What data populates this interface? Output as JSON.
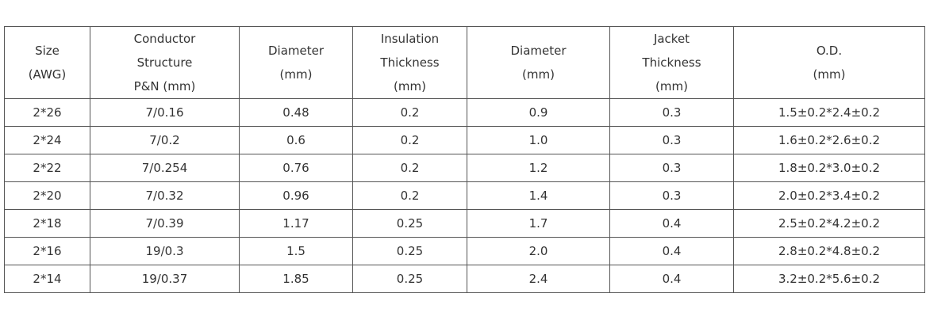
{
  "table": {
    "headers": [
      [
        "Size",
        "(AWG)"
      ],
      [
        "Conductor",
        "Structure",
        "P&N  (mm)"
      ],
      [
        "Diameter",
        "(mm)"
      ],
      [
        "Insulation",
        "Thickness",
        "(mm)"
      ],
      [
        "Diameter",
        "(mm)"
      ],
      [
        "Jacket",
        "Thickness",
        "(mm)"
      ],
      [
        "O.D.",
        "(mm)"
      ]
    ],
    "rows": [
      [
        "2*26",
        "7/0.16",
        "0.48",
        "0.2",
        "0.9",
        "0.3",
        "1.5±0.2*2.4±0.2"
      ],
      [
        "2*24",
        "7/0.2",
        "0.6",
        "0.2",
        "1.0",
        "0.3",
        "1.6±0.2*2.6±0.2"
      ],
      [
        "2*22",
        "7/0.254",
        "0.76",
        "0.2",
        "1.2",
        "0.3",
        "1.8±0.2*3.0±0.2"
      ],
      [
        "2*20",
        "7/0.32",
        "0.96",
        "0.2",
        "1.4",
        "0.3",
        "2.0±0.2*3.4±0.2"
      ],
      [
        "2*18",
        "7/0.39",
        "1.17",
        "0.25",
        "1.7",
        "0.4",
        "2.5±0.2*4.2±0.2"
      ],
      [
        "2*16",
        "19/0.3",
        "1.5",
        "0.25",
        "2.0",
        "0.4",
        "2.8±0.2*4.8±0.2"
      ],
      [
        "2*14",
        "19/0.37",
        "1.85",
        "0.25",
        "2.4",
        "0.4",
        "3.2±0.2*5.6±0.2"
      ]
    ]
  }
}
